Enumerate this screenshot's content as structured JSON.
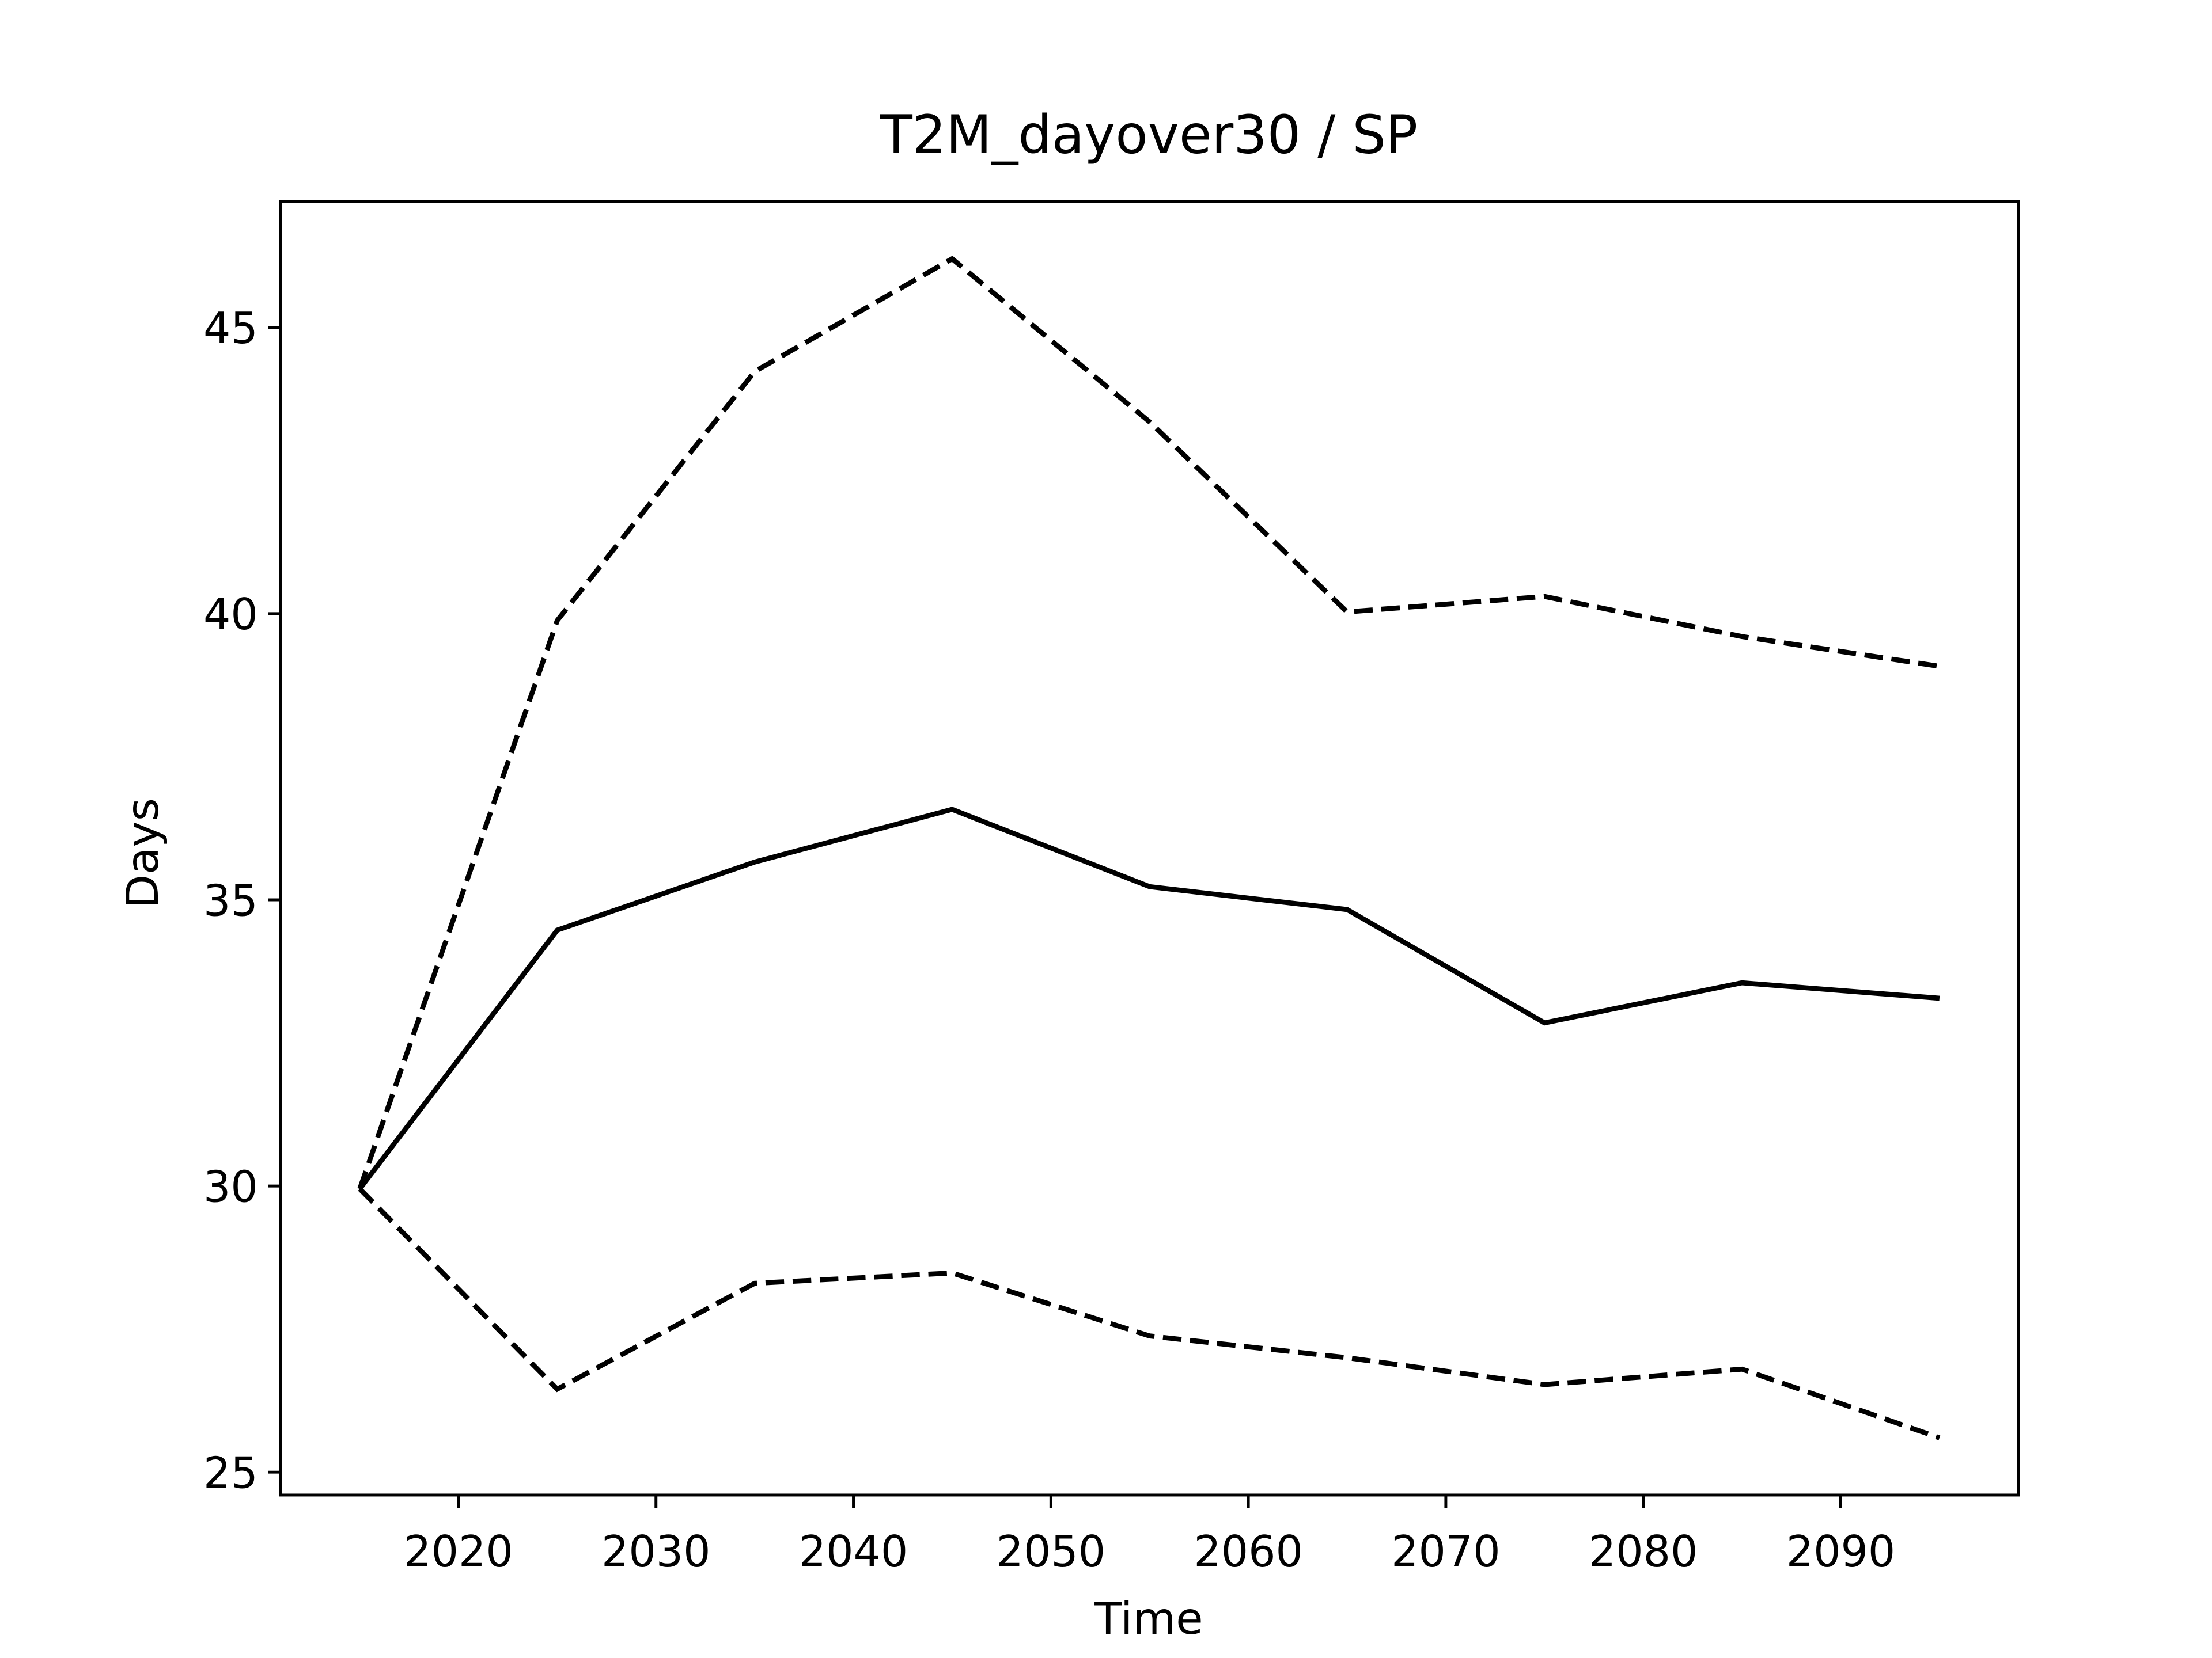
{
  "chart_data": {
    "type": "line",
    "title": "T2M_dayover30 / SP",
    "x_label": "Time",
    "y_label": "Days",
    "x": [
      2015,
      2025,
      2035,
      2045,
      2055,
      2065,
      2075,
      2085,
      2095
    ],
    "series": [
      {
        "color": "#000000",
        "linestyle": "solid",
        "values": [
          29.95,
          34.47,
          35.66,
          36.58,
          35.23,
          34.83,
          32.85,
          33.55,
          33.28
        ]
      },
      {
        "color": "#000000",
        "linestyle": "dashed",
        "values": [
          29.95,
          39.88,
          44.23,
          46.2,
          43.35,
          40.03,
          40.3,
          39.6,
          39.08
        ]
      },
      {
        "color": "#000000",
        "linestyle": "dashed",
        "values": [
          29.95,
          26.45,
          28.3,
          28.48,
          27.38,
          27.0,
          26.53,
          26.8,
          25.6
        ]
      }
    ],
    "xlim": [
      2011,
      2099
    ],
    "xticks": [
      2020,
      2030,
      2040,
      2050,
      2060,
      2070,
      2080,
      2090
    ],
    "ylim": [
      24.6,
      47.2
    ],
    "yticks": [
      25,
      30,
      35,
      40,
      45
    ],
    "grid": false
  }
}
